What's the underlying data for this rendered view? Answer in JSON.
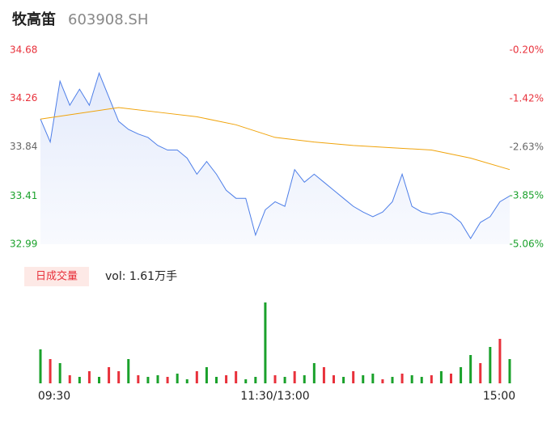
{
  "chart_data": [
    {
      "type": "line",
      "title": "牧高笛",
      "subtitle": "603908.SH",
      "xlim": [
        0,
        240
      ],
      "ylim": [
        32.99,
        34.68
      ],
      "yticks": [
        32.99,
        33.41,
        33.84,
        34.26,
        34.68
      ],
      "ytick_colors": [
        "#1aa12b",
        "#1aa12b",
        "#666666",
        "#e8313b",
        "#e8313b"
      ],
      "y2lim": [
        -5.06,
        -0.2
      ],
      "y2ticks": [
        {
          "value": -5.06,
          "label": "-5.06%"
        },
        {
          "value": -3.85,
          "label": "-3.85%"
        },
        {
          "value": -2.63,
          "label": "-2.63%"
        },
        {
          "value": -1.42,
          "label": "-1.42%"
        },
        {
          "value": -0.2,
          "label": "-0.20%"
        }
      ],
      "series": [
        {
          "color": "#4d7ee8",
          "x": [
            0,
            5,
            10,
            15,
            20,
            25,
            30,
            35,
            40,
            45,
            50,
            55,
            60,
            65,
            70,
            75,
            80,
            85,
            90,
            95,
            100,
            105,
            110,
            115,
            120,
            125,
            130,
            135,
            140,
            145,
            150,
            155,
            160,
            165,
            170,
            175,
            180,
            185,
            190,
            195,
            200,
            205,
            210,
            215,
            220,
            225,
            230,
            235,
            240
          ],
          "values": [
            34.08,
            33.88,
            34.41,
            34.2,
            34.34,
            34.2,
            34.48,
            34.27,
            34.06,
            33.99,
            33.95,
            33.92,
            33.85,
            33.81,
            33.81,
            33.74,
            33.6,
            33.71,
            33.6,
            33.46,
            33.39,
            33.39,
            33.07,
            33.29,
            33.36,
            33.32,
            33.64,
            33.53,
            33.6,
            33.53,
            33.46,
            33.39,
            33.32,
            33.27,
            33.23,
            33.27,
            33.36,
            33.6,
            33.32,
            33.27,
            33.25,
            33.27,
            33.25,
            33.18,
            33.04,
            33.18,
            33.23,
            33.36,
            33.41
          ]
        },
        {
          "color": "#f0a30a",
          "x": [
            0,
            20,
            40,
            60,
            80,
            100,
            120,
            140,
            160,
            180,
            200,
            220,
            240
          ],
          "values": [
            34.08,
            34.13,
            34.18,
            34.14,
            34.1,
            34.03,
            33.92,
            33.88,
            33.85,
            33.83,
            33.81,
            33.74,
            33.64
          ]
        }
      ]
    },
    {
      "type": "bar",
      "title": "日成交量",
      "annotation": "vol: 1.61万手",
      "xlim": [
        0,
        240
      ],
      "ylim": [
        0,
        100
      ],
      "xticks": [
        {
          "value": 0,
          "label": "09:30"
        },
        {
          "value": 120,
          "label": "11:30/13:00"
        },
        {
          "value": 240,
          "label": "15:00"
        }
      ],
      "x": [
        0,
        5,
        10,
        15,
        20,
        25,
        30,
        35,
        40,
        45,
        50,
        55,
        60,
        65,
        70,
        75,
        80,
        85,
        90,
        95,
        100,
        105,
        110,
        115,
        120,
        125,
        130,
        135,
        140,
        145,
        150,
        155,
        160,
        165,
        170,
        175,
        180,
        185,
        190,
        195,
        200,
        205,
        210,
        215,
        220,
        225,
        230,
        235,
        240
      ],
      "values": [
        42,
        30,
        25,
        10,
        8,
        15,
        8,
        20,
        15,
        30,
        10,
        8,
        10,
        8,
        12,
        5,
        15,
        20,
        8,
        10,
        15,
        5,
        8,
        100,
        10,
        8,
        15,
        10,
        25,
        20,
        10,
        8,
        15,
        10,
        12,
        5,
        8,
        12,
        10,
        8,
        10,
        15,
        12,
        20,
        35,
        25,
        45,
        55,
        30
      ],
      "colors": [
        "#1aa12b",
        "#e8313b",
        "#1aa12b",
        "#e8313b",
        "#1aa12b",
        "#e8313b",
        "#1aa12b",
        "#e8313b",
        "#e8313b",
        "#1aa12b",
        "#e8313b",
        "#1aa12b",
        "#1aa12b",
        "#e8313b",
        "#1aa12b",
        "#1aa12b",
        "#e8313b",
        "#1aa12b",
        "#1aa12b",
        "#e8313b",
        "#e8313b",
        "#1aa12b",
        "#1aa12b",
        "#1aa12b",
        "#e8313b",
        "#1aa12b",
        "#e8313b",
        "#1aa12b",
        "#1aa12b",
        "#e8313b",
        "#e8313b",
        "#1aa12b",
        "#e8313b",
        "#1aa12b",
        "#1aa12b",
        "#e8313b",
        "#1aa12b",
        "#e8313b",
        "#1aa12b",
        "#1aa12b",
        "#e8313b",
        "#1aa12b",
        "#e8313b",
        "#1aa12b",
        "#1aa12b",
        "#e8313b",
        "#1aa12b",
        "#e8313b",
        "#1aa12b"
      ]
    }
  ]
}
